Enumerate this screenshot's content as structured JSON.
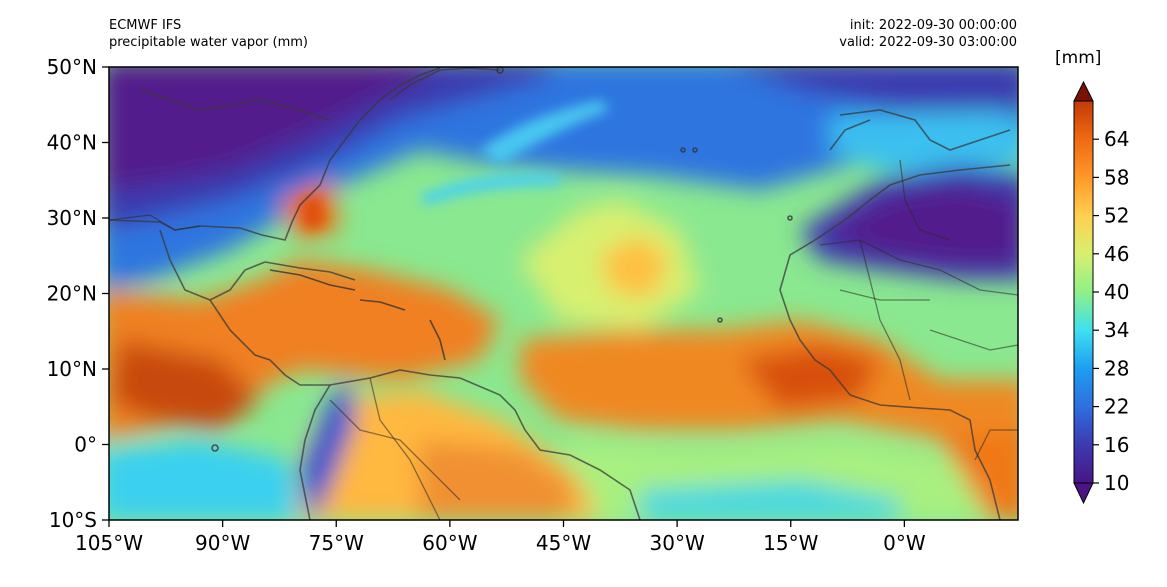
{
  "header": {
    "model": "ECMWF IFS",
    "field": "precipitable water vapor (mm)",
    "init": "init: 2022-09-30 00:00:00",
    "valid": "valid: 2022-09-30 03:00:00"
  },
  "map": {
    "lon_range": [
      -105,
      15
    ],
    "lat_range": [
      -10,
      50
    ],
    "lon_ticks": [
      {
        "value": -105,
        "label": "105°W"
      },
      {
        "value": -90,
        "label": "90°W"
      },
      {
        "value": -75,
        "label": "75°W"
      },
      {
        "value": -60,
        "label": "60°W"
      },
      {
        "value": -45,
        "label": "45°W"
      },
      {
        "value": -30,
        "label": "30°W"
      },
      {
        "value": -15,
        "label": "15°W"
      },
      {
        "value": 0,
        "label": "0°W"
      }
    ],
    "lat_ticks": [
      {
        "value": 50,
        "label": "50°N"
      },
      {
        "value": 40,
        "label": "40°N"
      },
      {
        "value": 30,
        "label": "30°N"
      },
      {
        "value": 20,
        "label": "20°N"
      },
      {
        "value": 10,
        "label": "10°N"
      },
      {
        "value": 0,
        "label": "0°"
      },
      {
        "value": -10,
        "label": "10°S"
      }
    ]
  },
  "colorbar": {
    "unit": "[mm]",
    "range": [
      10,
      70
    ],
    "tick_values": [
      10,
      16,
      22,
      28,
      34,
      40,
      46,
      52,
      58,
      64
    ],
    "tick_labels": [
      "10",
      "16",
      "22",
      "28",
      "34",
      "40",
      "46",
      "52",
      "58",
      "64"
    ],
    "colors": [
      "#4a1486",
      "#3b3bb0",
      "#2f6fe0",
      "#1e9ef0",
      "#3ee0f0",
      "#8ff088",
      "#d8f070",
      "#ffd050",
      "#ff9828",
      "#f06a14",
      "#c23a08",
      "#7a1202"
    ]
  }
}
